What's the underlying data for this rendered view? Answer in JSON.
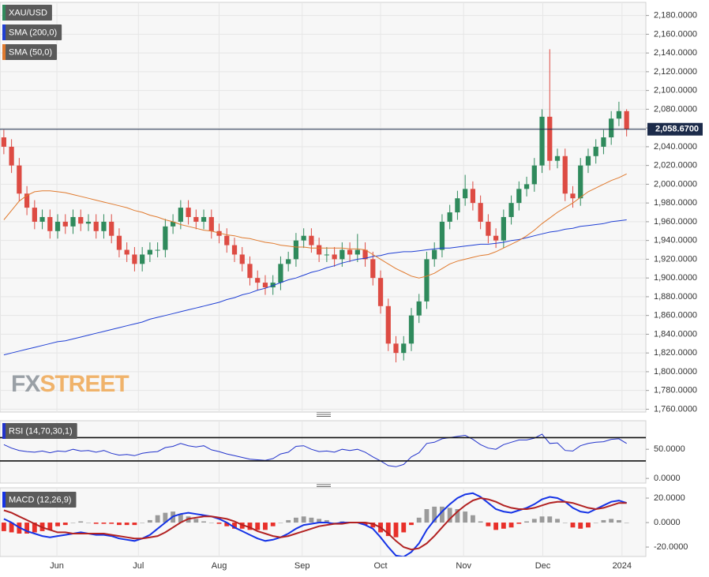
{
  "chart_data": [
    {
      "type": "candlestick",
      "xlim": [
        -0.5,
        83.5
      ],
      "xticks": [
        {
          "value": 6.9,
          "label": "Jun"
        },
        {
          "value": 17.5,
          "label": "Jul"
        },
        {
          "value": 28.0,
          "label": "Aug"
        },
        {
          "value": 38.8,
          "label": "Sep"
        },
        {
          "value": 49.0,
          "label": "Oct"
        },
        {
          "value": 59.8,
          "label": "Nov"
        },
        {
          "value": 70.1,
          "label": "Dec"
        },
        {
          "value": 80.4,
          "label": "2024"
        }
      ],
      "ylim": [
        1757,
        2194
      ],
      "yticks": [
        {
          "value": 1760,
          "label": "1,760.0000"
        },
        {
          "value": 1780,
          "label": "1,780.0000"
        },
        {
          "value": 1800,
          "label": "1,800.0000"
        },
        {
          "value": 1820,
          "label": "1,820.0000"
        },
        {
          "value": 1840,
          "label": "1,840.0000"
        },
        {
          "value": 1860,
          "label": "1,860.0000"
        },
        {
          "value": 1880,
          "label": "1,880.0000"
        },
        {
          "value": 1900,
          "label": "1,900.0000"
        },
        {
          "value": 1920,
          "label": "1,920.0000"
        },
        {
          "value": 1940,
          "label": "1,940.0000"
        },
        {
          "value": 1960,
          "label": "1,960.0000"
        },
        {
          "value": 1980,
          "label": "1,980.0000"
        },
        {
          "value": 2000,
          "label": "2,000.0000"
        },
        {
          "value": 2020,
          "label": "2,020.0000"
        },
        {
          "value": 2040,
          "label": "2,040.0000"
        },
        {
          "value": 2060,
          "label": "2,060.0000"
        },
        {
          "value": 2080,
          "label": "2,080.0000"
        },
        {
          "value": 2100,
          "label": "2,100.0000"
        },
        {
          "value": 2120,
          "label": "2,120.0000"
        },
        {
          "value": 2140,
          "label": "2,140.0000"
        },
        {
          "value": 2160,
          "label": "2,160.0000"
        },
        {
          "value": 2180,
          "label": "2,180.0000"
        }
      ],
      "grid": true,
      "last_price": {
        "value": 2058.67,
        "label": "2,058.6700",
        "color": "#1c2b4a"
      },
      "watermark": [
        "FX",
        "STREET"
      ],
      "series": [
        {
          "name": "XAU/USD",
          "type": "candlestick",
          "up_color": "#2f8a5c",
          "down_color": "#dd4b43",
          "open": [
            2050,
            2040,
            2020,
            1990,
            1975,
            1960,
            1965,
            1950,
            1960,
            1955,
            1965,
            1958,
            1960,
            1950,
            1960,
            1945,
            1930,
            1925,
            1915,
            1925,
            1930,
            1930,
            1955,
            1960,
            1975,
            1965,
            1960,
            1965,
            1950,
            1945,
            1935,
            1925,
            1915,
            1900,
            1895,
            1890,
            1895,
            1915,
            1920,
            1940,
            1945,
            1935,
            1925,
            1925,
            1920,
            1930,
            1925,
            1930,
            1920,
            1900,
            1870,
            1830,
            1820,
            1830,
            1860,
            1875,
            1920,
            1930,
            1960,
            1970,
            1985,
            1995,
            1980,
            1960,
            1945,
            1940,
            1965,
            1980,
            1995,
            2000,
            2020,
            2072,
            2025,
            2030,
            1990,
            1985,
            2020,
            2030,
            2040,
            2050,
            2070,
            2078
          ],
          "high": [
            2058,
            2048,
            2028,
            1998,
            1983,
            1973,
            1973,
            1968,
            1968,
            1973,
            1973,
            1968,
            1968,
            1968,
            1968,
            1953,
            1938,
            1933,
            1933,
            1938,
            1938,
            1963,
            1968,
            1983,
            1983,
            1973,
            1973,
            1973,
            1958,
            1953,
            1943,
            1933,
            1923,
            1908,
            1903,
            1903,
            1923,
            1928,
            1948,
            1953,
            1953,
            1943,
            1933,
            1933,
            1938,
            1938,
            1947,
            1938,
            1928,
            1908,
            1878,
            1838,
            1838,
            1868,
            1883,
            1928,
            1938,
            1968,
            1978,
            1993,
            2010,
            2003,
            1988,
            1968,
            1953,
            1973,
            1988,
            2003,
            2008,
            2028,
            2080,
            2144,
            2038,
            2038,
            1998,
            2028,
            2038,
            2048,
            2058,
            2078,
            2088,
            2080
          ],
          "low": [
            2032,
            2012,
            1982,
            1967,
            1952,
            1952,
            1942,
            1942,
            1947,
            1947,
            1950,
            1950,
            1942,
            1942,
            1937,
            1922,
            1917,
            1907,
            1907,
            1917,
            1922,
            1922,
            1947,
            1952,
            1957,
            1952,
            1952,
            1942,
            1937,
            1927,
            1917,
            1907,
            1892,
            1887,
            1882,
            1882,
            1887,
            1907,
            1912,
            1932,
            1927,
            1917,
            1917,
            1912,
            1912,
            1917,
            1917,
            1912,
            1892,
            1862,
            1822,
            1810,
            1812,
            1822,
            1852,
            1867,
            1912,
            1922,
            1952,
            1962,
            1977,
            1972,
            1952,
            1937,
            1932,
            1932,
            1957,
            1972,
            1987,
            1992,
            2012,
            2015,
            2017,
            1982,
            1975,
            1977,
            2012,
            2022,
            2032,
            2042,
            2062,
            2051
          ],
          "close": [
            2040,
            2020,
            1990,
            1975,
            1960,
            1965,
            1950,
            1960,
            1955,
            1965,
            1958,
            1960,
            1950,
            1960,
            1945,
            1930,
            1925,
            1915,
            1925,
            1930,
            1930,
            1955,
            1960,
            1975,
            1965,
            1960,
            1965,
            1950,
            1945,
            1935,
            1925,
            1915,
            1900,
            1895,
            1890,
            1895,
            1915,
            1920,
            1940,
            1945,
            1935,
            1925,
            1925,
            1920,
            1930,
            1925,
            1930,
            1920,
            1900,
            1870,
            1830,
            1820,
            1830,
            1860,
            1875,
            1920,
            1930,
            1960,
            1970,
            1985,
            1995,
            1980,
            1960,
            1945,
            1940,
            1965,
            1980,
            1995,
            2000,
            2020,
            2072,
            2025,
            2030,
            1990,
            1985,
            2020,
            2030,
            2040,
            2050,
            2070,
            2078,
            2059
          ]
        },
        {
          "name": "SMA (200,0)",
          "type": "line",
          "color": "#1f3fd4",
          "values": [
            1818,
            1820,
            1822,
            1824,
            1826,
            1828,
            1830,
            1832,
            1833,
            1835,
            1837,
            1839,
            1841,
            1843,
            1845,
            1847,
            1849,
            1851,
            1853,
            1856,
            1858,
            1860,
            1862,
            1864,
            1866,
            1868,
            1870,
            1872,
            1874,
            1877,
            1879,
            1882,
            1884,
            1887,
            1889,
            1892,
            1895,
            1898,
            1900,
            1903,
            1906,
            1908,
            1911,
            1913,
            1916,
            1918,
            1920,
            1921,
            1923,
            1924,
            1926,
            1927,
            1928,
            1928,
            1929,
            1930,
            1931,
            1932,
            1932,
            1933,
            1934,
            1935,
            1936,
            1936,
            1937,
            1938,
            1940,
            1941,
            1943,
            1945,
            1947,
            1949,
            1950,
            1952,
            1953,
            1955,
            1956,
            1957,
            1958,
            1960,
            1961,
            1962
          ]
        },
        {
          "name": "SMA (50,0)",
          "type": "line",
          "color": "#e07a2e",
          "values": [
            1962,
            1972,
            1982,
            1988,
            1992,
            1993,
            1993,
            1992,
            1991,
            1989,
            1987,
            1985,
            1983,
            1981,
            1979,
            1977,
            1975,
            1972,
            1970,
            1967,
            1965,
            1962,
            1960,
            1957,
            1955,
            1953,
            1951,
            1950,
            1948,
            1946,
            1945,
            1943,
            1942,
            1940,
            1938,
            1937,
            1935,
            1934,
            1933,
            1933,
            1932,
            1932,
            1932,
            1932,
            1932,
            1931,
            1931,
            1930,
            1925,
            1920,
            1915,
            1910,
            1906,
            1902,
            1900,
            1902,
            1905,
            1910,
            1915,
            1918,
            1920,
            1922,
            1924,
            1925,
            1928,
            1932,
            1936,
            1940,
            1945,
            1951,
            1958,
            1964,
            1970,
            1975,
            1980,
            1986,
            1992,
            1996,
            2000,
            2004,
            2007,
            2011
          ]
        }
      ]
    },
    {
      "type": "line",
      "ylim": [
        -8,
        99
      ],
      "yticks": [
        {
          "value": 50,
          "label": "50.0000"
        },
        {
          "value": 0,
          "label": "0.0000"
        }
      ],
      "levels": [
        70,
        30
      ],
      "series": [
        {
          "name": "RSI (14,70,30,1)",
          "color": "#2233cc",
          "values": [
            58,
            52,
            48,
            46,
            45,
            47,
            44,
            47,
            46,
            50,
            47,
            48,
            45,
            48,
            43,
            40,
            41,
            39,
            43,
            45,
            46,
            53,
            55,
            60,
            56,
            54,
            56,
            49,
            46,
            42,
            39,
            36,
            33,
            32,
            31,
            34,
            42,
            45,
            55,
            56,
            50,
            46,
            47,
            45,
            50,
            48,
            50,
            45,
            37,
            30,
            22,
            20,
            24,
            37,
            44,
            60,
            62,
            68,
            70,
            72,
            74,
            67,
            58,
            52,
            50,
            58,
            62,
            66,
            66,
            69,
            76,
            60,
            61,
            48,
            47,
            56,
            60,
            62,
            63,
            67,
            68,
            60
          ]
        }
      ]
    },
    {
      "type": "macd",
      "ylim": [
        -27.7,
        28.4
      ],
      "yticks": [
        {
          "value": 20,
          "label": "20.0000"
        },
        {
          "value": 0,
          "label": "0.0000"
        },
        {
          "value": -20,
          "label": "-20.0000"
        }
      ],
      "legend_label": "MACD (12,26,9)",
      "positive_color": "#9a9a9a",
      "negative_color": "#e8302a",
      "histogram": [
        -7,
        -8,
        -9,
        -9,
        -8,
        -7,
        -6,
        -3,
        -2,
        0,
        1,
        0,
        -1,
        -1,
        -1,
        -2,
        -2,
        -2,
        0,
        2,
        6,
        8,
        9,
        7,
        5,
        3,
        1,
        0,
        -1,
        -3,
        -5,
        -5,
        -6,
        -6,
        -6,
        -3,
        0,
        2,
        4,
        5,
        4,
        3,
        2,
        0,
        1,
        0,
        0,
        -2,
        -4,
        -8,
        -11,
        -12,
        -8,
        -2,
        4,
        11,
        13,
        13,
        12,
        11,
        9,
        6,
        1,
        -3,
        -6,
        -5,
        -4,
        -1,
        1,
        3,
        5,
        5,
        3,
        0,
        -4,
        -5,
        -4,
        0,
        2,
        3,
        2,
        0
      ],
      "series": [
        {
          "color": "#1533e6",
          "values": [
            3,
            0,
            -4,
            -7,
            -9,
            -11,
            -12,
            -11,
            -10,
            -9,
            -8,
            -9,
            -10,
            -10,
            -11,
            -13,
            -14,
            -15,
            -13,
            -10,
            -5,
            0,
            5,
            7,
            8,
            7,
            6,
            5,
            3,
            0,
            -4,
            -7,
            -10,
            -13,
            -15,
            -14,
            -12,
            -9,
            -5,
            -2,
            -1,
            0,
            0,
            -1,
            0,
            0,
            0,
            -2,
            -5,
            -12,
            -20,
            -27,
            -28,
            -24,
            -17,
            -6,
            2,
            9,
            15,
            20,
            23,
            24,
            21,
            16,
            11,
            9,
            8,
            10,
            12,
            15,
            19,
            21,
            20,
            17,
            12,
            9,
            8,
            11,
            14,
            17,
            18,
            16
          ]
        },
        {
          "color": "#b22222",
          "values": [
            10,
            8,
            5,
            2,
            -1,
            -4,
            -6,
            -8,
            -8,
            -9,
            -9,
            -9,
            -9,
            -9,
            -10,
            -11,
            -12,
            -13,
            -13,
            -12,
            -11,
            -8,
            -4,
            0,
            3,
            4,
            5,
            5,
            4,
            3,
            1,
            -2,
            -4,
            -7,
            -9,
            -11,
            -12,
            -11,
            -9,
            -7,
            -5,
            -3,
            -2,
            -1,
            -1,
            0,
            0,
            0,
            -1,
            -4,
            -9,
            -15,
            -20,
            -22,
            -21,
            -17,
            -11,
            -4,
            3,
            9,
            14,
            18,
            20,
            19,
            17,
            14,
            12,
            11,
            11,
            12,
            14,
            16,
            17,
            17,
            16,
            14,
            12,
            11,
            12,
            14,
            16,
            16
          ]
        }
      ]
    }
  ]
}
